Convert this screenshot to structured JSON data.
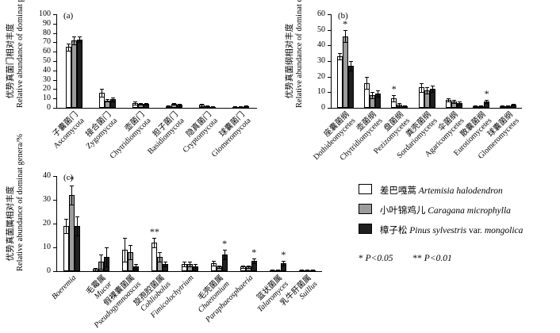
{
  "figure": {
    "background": "#ffffff",
    "axis_color": "#000000",
    "series_colors": [
      "#ffffff",
      "#9c9c9c",
      "#1f1f1f"
    ]
  },
  "legend": {
    "items": [
      {
        "label_cn": "差巴嘎蒿",
        "label_latin": "Artemisia halodendron",
        "color": "#ffffff"
      },
      {
        "label_cn": "小叶锦鸡儿",
        "label_latin": "Caragana microphylla",
        "color": "#9c9c9c"
      },
      {
        "label_cn": "樟子松",
        "latin_main": "Pinus sylvestris",
        "latin_var": "var.",
        "latin_sub": "mongolica",
        "color": "#1f1f1f"
      }
    ],
    "significance": [
      {
        "stars": "*",
        "label": "P<0.05"
      },
      {
        "stars": "**",
        "label": "P<0.01"
      }
    ]
  },
  "chart_data": [
    {
      "type": "bar",
      "panel_label": "(a)",
      "ylabel_cn": "优势真菌门相对丰度",
      "ylabel_en": "Relative abundance of dominat phyla/%",
      "ylim": [
        0,
        100
      ],
      "yticks": [
        0,
        10,
        20,
        30,
        40,
        50,
        60,
        70,
        80,
        90,
        100
      ],
      "latin_italic": false,
      "categories": [
        {
          "cn": "子囊菌门",
          "latin": "Ascomycota"
        },
        {
          "cn": "接合菌门",
          "latin": "Zygomycota"
        },
        {
          "cn": "壶菌门",
          "latin": "Chytridiomycota"
        },
        {
          "cn": "担子菌门",
          "latin": "Basidiomycota"
        },
        {
          "cn": "隐真菌门",
          "latin": "Cryptomycota"
        },
        {
          "cn": "球囊菌门",
          "latin": "Glomeromycota"
        }
      ],
      "series": [
        {
          "name": "Artemisia halodendron",
          "values": [
            65,
            16,
            5,
            2,
            3,
            1
          ],
          "errors": [
            4,
            4,
            1.5,
            0.5,
            1,
            0.4
          ]
        },
        {
          "name": "Caragana microphylla",
          "values": [
            72,
            8,
            4,
            4,
            2,
            1
          ],
          "errors": [
            4,
            1.5,
            1,
            1,
            0.7,
            0.4
          ]
        },
        {
          "name": "Pinus sylvestris var. mongolica",
          "values": [
            73,
            9,
            4,
            3,
            1,
            2
          ],
          "errors": [
            3,
            2,
            1,
            1,
            0.4,
            0.6
          ]
        }
      ],
      "annotations": []
    },
    {
      "type": "bar",
      "panel_label": "(b)",
      "ylabel_cn": "优势真菌纲相对丰度",
      "ylabel_en": "Relative abundance of dominat classes/%",
      "ylim": [
        0,
        60
      ],
      "yticks": [
        0,
        10,
        20,
        30,
        40,
        50,
        60
      ],
      "latin_italic": false,
      "categories": [
        {
          "cn": "座囊菌纲",
          "latin": "Dothideomycetes"
        },
        {
          "cn": "壶菌纲",
          "latin": "Chytridiomycetes"
        },
        {
          "cn": "盘菌纲",
          "latin": "Pezizomycetes"
        },
        {
          "cn": "粪壳菌纲",
          "latin": "Sordariomycetes"
        },
        {
          "cn": "伞菌纲",
          "latin": "Agaricomycetes"
        },
        {
          "cn": "散囊菌纲",
          "latin": "Eurotiomycetes"
        },
        {
          "cn": "球囊菌纲",
          "latin": "Glomeromycetes"
        }
      ],
      "series": [
        {
          "name": "Artemisia halodendron",
          "values": [
            33,
            16,
            6,
            13,
            5,
            1,
            1
          ],
          "errors": [
            2,
            4,
            2,
            3,
            1,
            0.3,
            0.3
          ]
        },
        {
          "name": "Caragana microphylla",
          "values": [
            46,
            8,
            2,
            11,
            4,
            1,
            1
          ],
          "errors": [
            4,
            2,
            1,
            2,
            1,
            0.3,
            0.3
          ]
        },
        {
          "name": "Pinus sylvestris var. mongolica",
          "values": [
            27,
            9,
            1,
            12,
            3,
            4,
            2
          ],
          "errors": [
            3,
            2,
            0.5,
            2,
            1,
            1,
            0.5
          ]
        }
      ],
      "annotations": [
        {
          "category": 0,
          "series": 1,
          "text": "*"
        },
        {
          "category": 2,
          "series": 0,
          "text": "*"
        },
        {
          "category": 5,
          "series": 2,
          "text": "*"
        }
      ]
    },
    {
      "type": "bar",
      "panel_label": "(c)",
      "ylabel_cn": "优势真菌属相对丰度",
      "ylabel_en": "Relative abundance of dominat genera/%",
      "ylim": [
        0,
        40
      ],
      "yticks": [
        0,
        10,
        20,
        30,
        40
      ],
      "latin_italic": true,
      "categories": [
        {
          "cn": "",
          "latin": "Boeremia"
        },
        {
          "cn": "毛霉属",
          "latin": "Mucor"
        },
        {
          "cn": "假裸囊菌属",
          "latin": "Pseudogymnoascus"
        },
        {
          "cn": "旋孢腔菌属",
          "latin": "Cohliobolus"
        },
        {
          "cn": "",
          "latin": "Fimicolochytrium"
        },
        {
          "cn": "毛壳菌属",
          "latin": "Chaetomium"
        },
        {
          "cn": "",
          "latin": "Paraphaeosphaeria"
        },
        {
          "cn": "篮状菌属",
          "latin": "Talaromyces"
        },
        {
          "cn": "乳牛肝菌属",
          "latin": "Suillus"
        }
      ],
      "series": [
        {
          "name": "Artemisia halodendron",
          "values": [
            19,
            1,
            9,
            12,
            3,
            3.5,
            2,
            0.5,
            0.4
          ],
          "errors": [
            3,
            0.5,
            5,
            2,
            1,
            1,
            0.5,
            0.2,
            0.15
          ]
        },
        {
          "name": "Caragana microphylla",
          "values": [
            32,
            4,
            8,
            6,
            3,
            2,
            2,
            0.5,
            0.4
          ],
          "errors": [
            4,
            3,
            3,
            2,
            1,
            0.5,
            0.5,
            0.2,
            0.15
          ]
        },
        {
          "name": "Pinus sylvestris var. mongolica",
          "values": [
            19,
            6,
            2,
            3,
            2,
            7,
            4.5,
            3.5,
            0.4
          ],
          "errors": [
            4,
            4,
            1,
            1,
            1,
            2,
            1,
            1,
            0.15
          ]
        }
      ],
      "annotations": [
        {
          "category": 0,
          "series": 1,
          "text": "*"
        },
        {
          "category": 3,
          "series": 0,
          "text": "**"
        },
        {
          "category": 5,
          "series": 2,
          "text": "*"
        },
        {
          "category": 6,
          "series": 2,
          "text": "*"
        },
        {
          "category": 7,
          "series": 2,
          "text": "*"
        }
      ]
    }
  ]
}
